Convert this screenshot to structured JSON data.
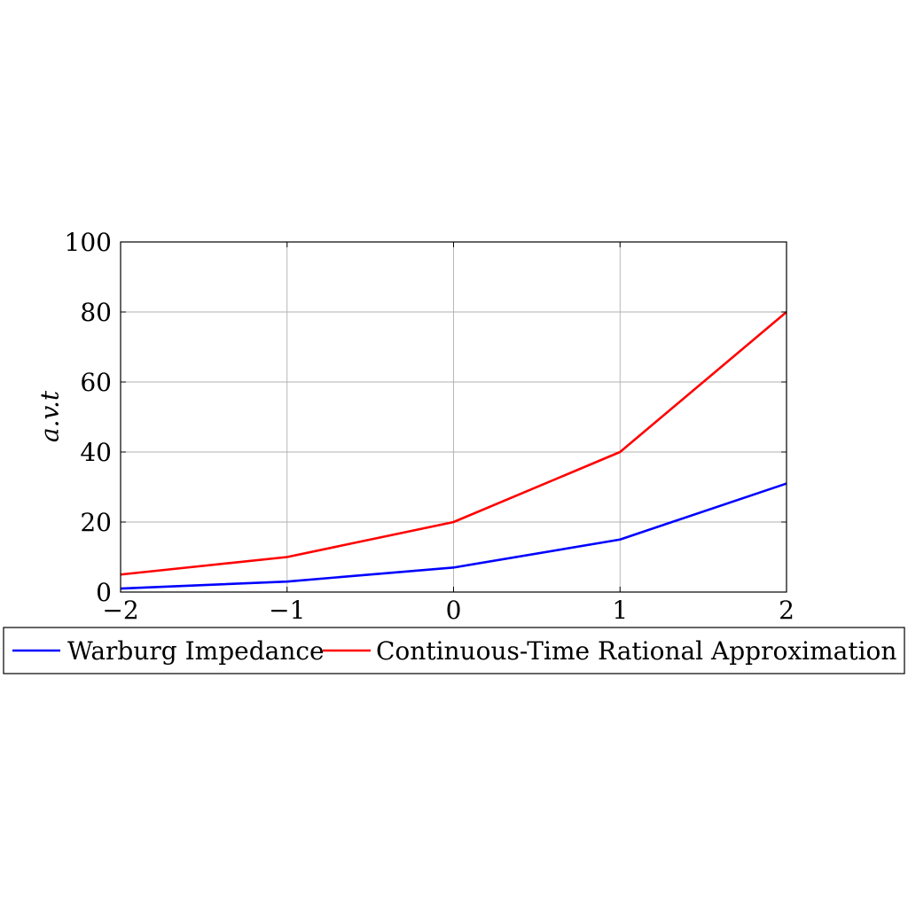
{
  "chart_data": {
    "type": "line",
    "x": [
      -2,
      -1,
      0,
      1,
      2
    ],
    "xlim": [
      -2,
      2
    ],
    "ylim": [
      0,
      100
    ],
    "xticks": [
      -2,
      -1,
      0,
      1,
      2
    ],
    "xtick_labels": [
      "−2",
      "−1",
      "0",
      "1",
      "2"
    ],
    "yticks": [
      0,
      20,
      40,
      60,
      80,
      100
    ],
    "ytick_labels": [
      "0",
      "20",
      "40",
      "60",
      "80",
      "100"
    ],
    "title": "",
    "xlabel": "",
    "ylabel": "a.v.t",
    "grid": true,
    "legend_position": "bottom",
    "series": [
      {
        "name": "Warburg Impedance",
        "color": "#0000ff",
        "values": [
          1,
          3,
          7,
          15,
          31
        ]
      },
      {
        "name": "Continuous-Time Rational Approximation",
        "color": "#ff0000",
        "values": [
          5,
          10,
          20,
          40,
          80
        ]
      }
    ]
  }
}
